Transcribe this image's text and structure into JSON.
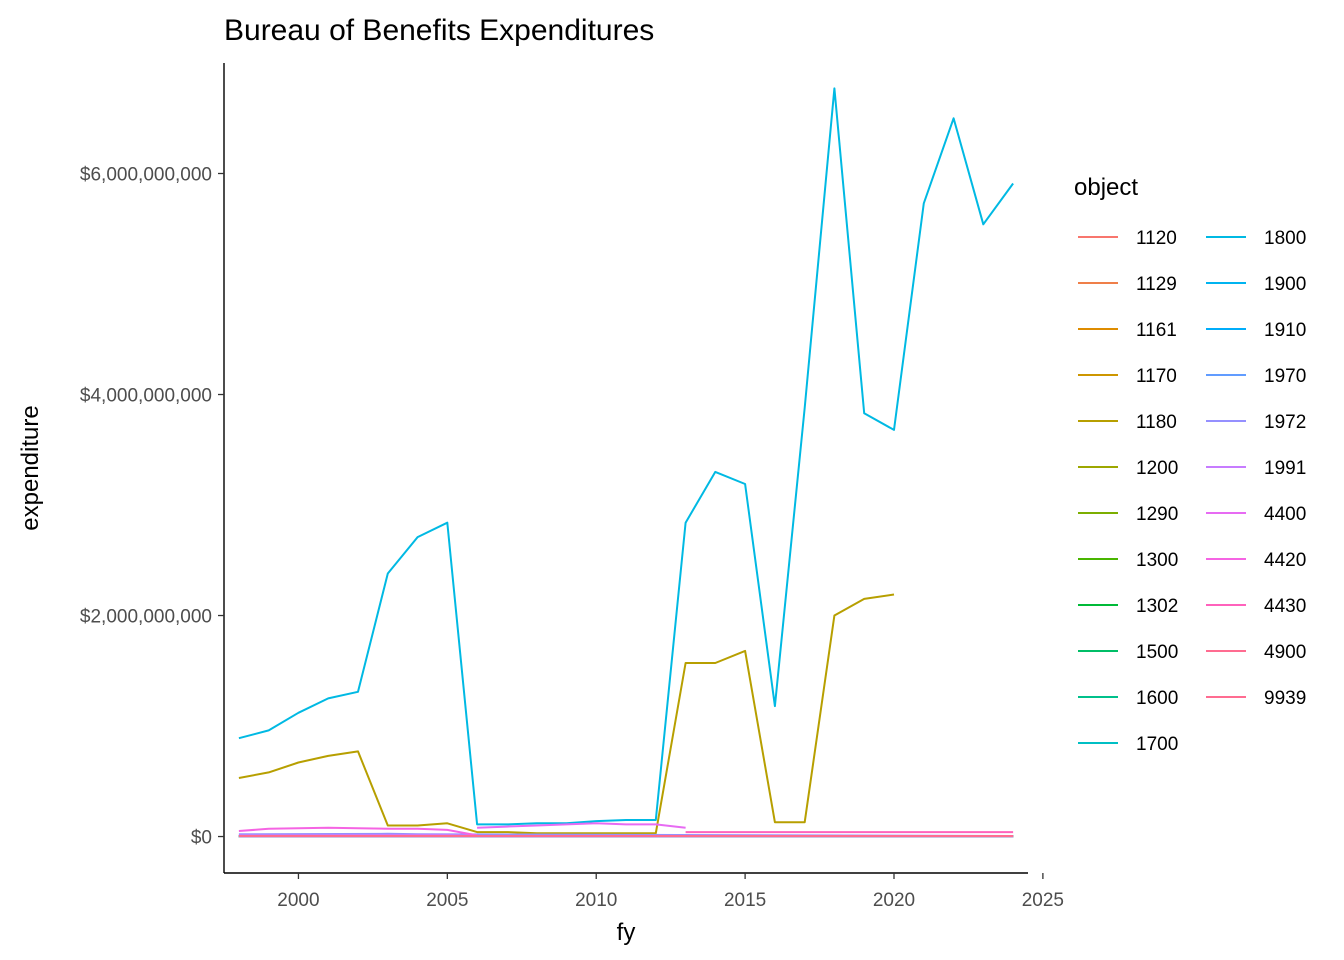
{
  "chart_data": {
    "type": "line",
    "title": "Bureau of Benefits Expenditures",
    "xlabel": "fy",
    "ylabel": "expenditure",
    "xlim": [
      1997.5,
      2024.5
    ],
    "ylim": [
      -330000000,
      7000000000
    ],
    "x_ticks": [
      2000,
      2005,
      2010,
      2015,
      2020,
      2025
    ],
    "x_tick_labels": [
      "2000",
      "2005",
      "2010",
      "2015",
      "2020",
      "2025"
    ],
    "y_ticks": [
      0,
      2000000000,
      4000000000,
      6000000000
    ],
    "y_tick_labels": [
      "$0",
      "$2,000,000,000",
      "$4,000,000,000",
      "$6,000,000,000"
    ],
    "grid": false,
    "legend_position": "right",
    "legend_title": "object",
    "series": [
      {
        "name": "1120",
        "color": "#F8766D",
        "x": [
          1998,
          2024
        ],
        "y": [
          2000000,
          2000000
        ]
      },
      {
        "name": "1129",
        "color": "#EF7F49",
        "x": [
          1998,
          2024
        ],
        "y": [
          1000000,
          1000000
        ]
      },
      {
        "name": "1161",
        "color": "#DE8C00",
        "x": [
          1998,
          2024
        ],
        "y": [
          1000000,
          1000000
        ]
      },
      {
        "name": "1170",
        "color": "#CD9600",
        "x": [
          1998,
          2024
        ],
        "y": [
          3000000,
          3000000
        ]
      },
      {
        "name": "1180",
        "color": "#B79F00",
        "x": [
          1998,
          1999,
          2000,
          2001,
          2002,
          2003,
          2004,
          2005,
          2006,
          2007,
          2008,
          2009,
          2010,
          2011,
          2012,
          2013,
          2014,
          2015,
          2016,
          2017,
          2018,
          2019,
          2020
        ],
        "y": [
          530000000,
          580000000,
          670000000,
          730000000,
          770000000,
          100000000,
          100000000,
          120000000,
          40000000,
          40000000,
          30000000,
          30000000,
          30000000,
          30000000,
          30000000,
          1570000000,
          1570000000,
          1680000000,
          130000000,
          130000000,
          2000000000,
          2150000000,
          2190000000
        ]
      },
      {
        "name": "1200",
        "color": "#9DA700",
        "x": [
          1998,
          2024
        ],
        "y": [
          5000000,
          5000000
        ]
      },
      {
        "name": "1290",
        "color": "#7CAE00",
        "x": [
          1998,
          2024
        ],
        "y": [
          2000000,
          2000000
        ]
      },
      {
        "name": "1300",
        "color": "#49B500",
        "x": [
          1998,
          2024
        ],
        "y": [
          1000000,
          1000000
        ]
      },
      {
        "name": "1302",
        "color": "#00BA38",
        "x": [
          1998,
          2024
        ],
        "y": [
          1000000,
          1000000
        ]
      },
      {
        "name": "1500",
        "color": "#00BE67",
        "x": [
          1998,
          2024
        ],
        "y": [
          2000000,
          2000000
        ]
      },
      {
        "name": "1600",
        "color": "#00C08B",
        "x": [
          1998,
          2024
        ],
        "y": [
          2000000,
          2000000
        ]
      },
      {
        "name": "1700",
        "color": "#00BFC4",
        "x": [
          1998,
          2024
        ],
        "y": [
          3000000,
          3000000
        ]
      },
      {
        "name": "1800",
        "color": "#00B9E3",
        "x": [
          1998,
          1999,
          2000,
          2001,
          2002,
          2003,
          2004,
          2005,
          2006,
          2007,
          2008,
          2009,
          2010,
          2011,
          2012,
          2013,
          2014,
          2015,
          2016,
          2017,
          2018,
          2019,
          2020,
          2021,
          2022,
          2023,
          2024
        ],
        "y": [
          890000000,
          960000000,
          1120000000,
          1250000000,
          1310000000,
          2380000000,
          2710000000,
          2840000000,
          110000000,
          110000000,
          120000000,
          120000000,
          140000000,
          150000000,
          150000000,
          2840000000,
          3300000000,
          3190000000,
          1180000000,
          3880000000,
          6770000000,
          3830000000,
          3680000000,
          5730000000,
          6500000000,
          5540000000,
          5910000000
        ]
      },
      {
        "name": "1900",
        "color": "#00B4F0",
        "x": [
          1998,
          2024
        ],
        "y": [
          2000000,
          2000000
        ]
      },
      {
        "name": "1910",
        "color": "#00ADFA",
        "x": [
          1998,
          2024
        ],
        "y": [
          1000000,
          1000000
        ]
      },
      {
        "name": "1970",
        "color": "#619CFF",
        "x": [
          1998,
          2024
        ],
        "y": [
          2000000,
          2000000
        ]
      },
      {
        "name": "1972",
        "color": "#9590FF",
        "x": [
          1998,
          2003,
          2004,
          2024
        ],
        "y": [
          20000000,
          25000000,
          20000000,
          5000000
        ]
      },
      {
        "name": "1991",
        "color": "#C77CFF",
        "x": [
          1998,
          2005,
          2006,
          2024
        ],
        "y": [
          10000000,
          15000000,
          5000000,
          5000000
        ]
      },
      {
        "name": "4400",
        "color": "#E76BF3",
        "x": [
          2006,
          2007,
          2008,
          2009,
          2010,
          2011,
          2012,
          2013
        ],
        "y": [
          80000000,
          90000000,
          100000000,
          110000000,
          120000000,
          110000000,
          110000000,
          80000000
        ]
      },
      {
        "name": "4420",
        "color": "#F564E3",
        "x": [
          1998,
          1999,
          2000,
          2001,
          2002,
          2003,
          2004,
          2005,
          2006
        ],
        "y": [
          50000000,
          70000000,
          75000000,
          80000000,
          75000000,
          70000000,
          70000000,
          60000000,
          10000000
        ]
      },
      {
        "name": "4430",
        "color": "#FF62BC",
        "x": [
          2013,
          2014,
          2015,
          2016,
          2017,
          2018,
          2019,
          2020,
          2021,
          2022,
          2023,
          2024
        ],
        "y": [
          40000000,
          40000000,
          40000000,
          40000000,
          40000000,
          40000000,
          40000000,
          40000000,
          40000000,
          40000000,
          40000000,
          40000000
        ]
      },
      {
        "name": "4900",
        "color": "#FF6C91",
        "x": [
          1998,
          2024
        ],
        "y": [
          5000000,
          5000000
        ]
      },
      {
        "name": "9939",
        "color": "#FF6C91",
        "x": [
          1998,
          2024
        ],
        "y": [
          3000000,
          3000000
        ]
      }
    ]
  }
}
